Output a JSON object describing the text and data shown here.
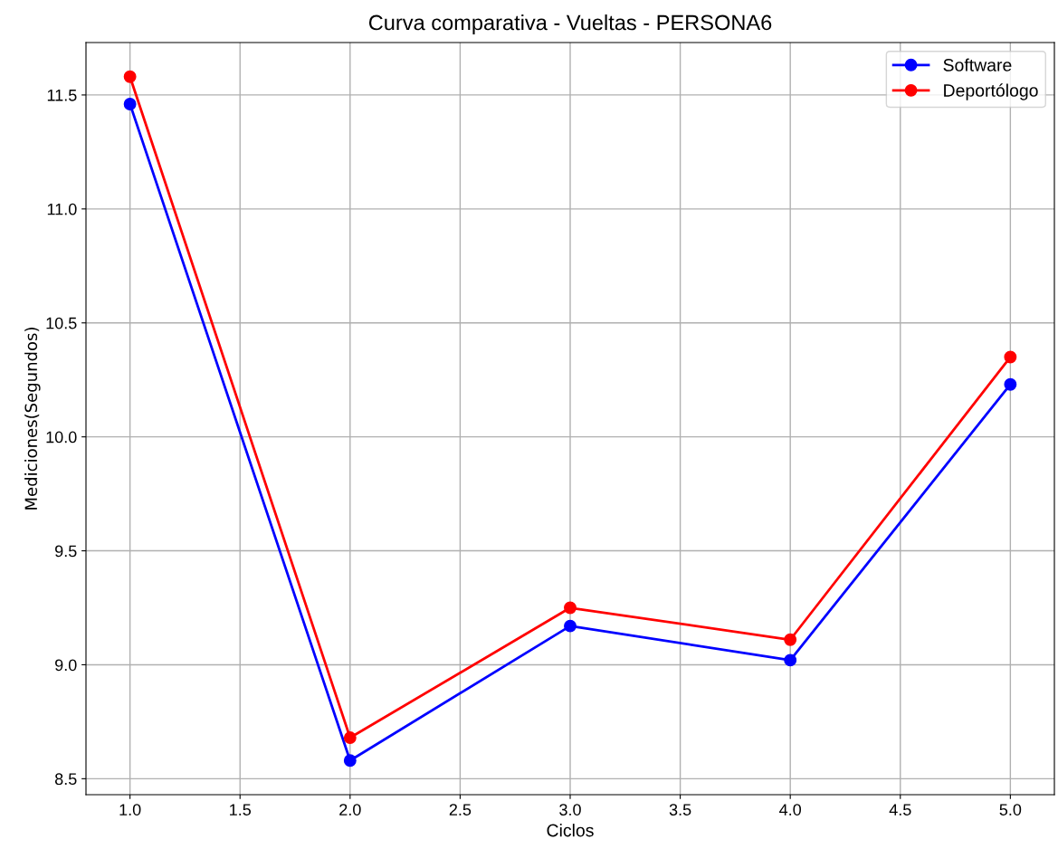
{
  "chart_data": {
    "type": "line",
    "title": "Curva comparativa - Vueltas - PERSONA6",
    "xlabel": "Ciclos",
    "ylabel": "Mediciones(Segundos)",
    "x": [
      1.0,
      2.0,
      3.0,
      4.0,
      5.0
    ],
    "series": [
      {
        "name": "Software",
        "color": "#0000ff",
        "values": [
          11.46,
          8.58,
          9.17,
          9.02,
          10.23
        ]
      },
      {
        "name": "Deportólogo",
        "color": "#ff0000",
        "values": [
          11.58,
          8.68,
          9.25,
          9.11,
          10.35
        ]
      }
    ],
    "xlim": [
      0.8,
      5.2
    ],
    "xticks": [
      {
        "value": 1.0,
        "label": "1.0"
      },
      {
        "value": 1.5,
        "label": "1.5"
      },
      {
        "value": 2.0,
        "label": "2.0"
      },
      {
        "value": 2.5,
        "label": "2.5"
      },
      {
        "value": 3.0,
        "label": "3.0"
      },
      {
        "value": 3.5,
        "label": "3.5"
      },
      {
        "value": 4.0,
        "label": "4.0"
      },
      {
        "value": 4.5,
        "label": "4.5"
      },
      {
        "value": 5.0,
        "label": "5.0"
      }
    ],
    "ylim": [
      8.43,
      11.73
    ],
    "yticks": [
      {
        "value": 8.5,
        "label": "8.5"
      },
      {
        "value": 9.0,
        "label": "9.0"
      },
      {
        "value": 9.5,
        "label": "9.5"
      },
      {
        "value": 10.0,
        "label": "10.0"
      },
      {
        "value": 10.5,
        "label": "10.5"
      },
      {
        "value": 11.0,
        "label": "11.0"
      },
      {
        "value": 11.5,
        "label": "11.5"
      }
    ],
    "grid": true,
    "legend": "top right",
    "marker": "circle",
    "line_style": "solid"
  }
}
